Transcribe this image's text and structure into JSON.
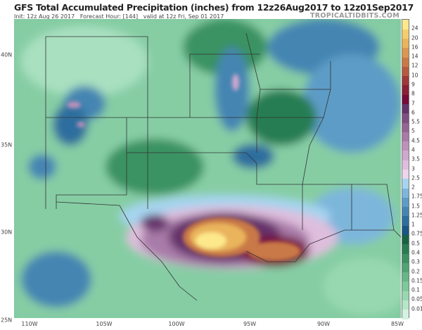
{
  "header": {
    "title": "GFS Total Accumulated Precipitation (inches) from 12z26Aug2017 to 12z01Sep2017",
    "init": "Init: 12z Aug 26 2017",
    "forecast_hour": "Forecast Hour: [144]",
    "valid": "valid at 12z Fri, Sep 01 2017",
    "brand": "TROPICALTIDBITS.COM"
  },
  "axes": {
    "longitude_labels": [
      "110W",
      "105W",
      "100W",
      "95W",
      "90W",
      "85W"
    ],
    "latitude_labels": [
      "40N",
      "35N",
      "30N",
      "25N"
    ]
  },
  "colorbar": {
    "unit": "inches",
    "labels": [
      "0.01",
      "0.05",
      "0.1",
      "0.15",
      "0.2",
      "0.3",
      "0.4",
      "0.5",
      "0.75",
      "1",
      "1.25",
      "1.5",
      "1.75",
      "2",
      "2.5",
      "3",
      "3.5",
      "4",
      "4.5",
      "5",
      "5.5",
      "6",
      "7",
      "8",
      "9",
      "10",
      "12",
      "14",
      "16",
      "20",
      "24"
    ],
    "colors": [
      "#d3f2e0",
      "#b6e6c8",
      "#98d8b0",
      "#7cc99a",
      "#64b886",
      "#4ea574",
      "#3a9262",
      "#277d52",
      "#176442",
      "#1a5585",
      "#2e6e9e",
      "#4585b2",
      "#5d9cc6",
      "#7db6db",
      "#a6d4ee",
      "#ecd4ec",
      "#dfbedd",
      "#cfa8cd",
      "#bc92bb",
      "#a87ba8",
      "#936595",
      "#7d4e81",
      "#65336b",
      "#760a3a",
      "#8b1f36",
      "#a03838",
      "#b65a3f",
      "#c97947",
      "#da9750",
      "#e9b45c",
      "#f4cd6c",
      "#fde88c"
    ]
  }
}
